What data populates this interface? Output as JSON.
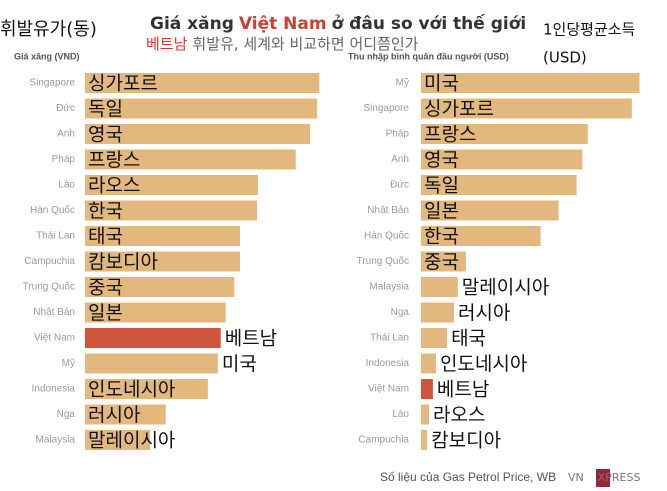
{
  "overlay": {
    "left_title": "휘발유가(동)",
    "right_title": "1인당평균소득",
    "right_unit": "(USD)",
    "subtitle_highlight": "베트남",
    "subtitle_rest": "휘발유, 세계와 비교하면 어디쯤인가"
  },
  "title_parts": [
    "Giá xăng",
    "Việt Nam",
    "ở đâu so với thế giới"
  ],
  "source": "Số liệu của Gas Petrol Price, WB",
  "logo_parts": [
    "VN",
    "E",
    "XPRESS"
  ],
  "chart_data": [
    {
      "type": "bar",
      "orientation": "horizontal",
      "axis_label": "Giá xăng (VND)",
      "categories": [
        "Singapore",
        "Đức",
        "Anh",
        "Pháp",
        "Lào",
        "Hàn Quốc",
        "Thái Lan",
        "Campuchia",
        "Trung Quốc",
        "Nhật Bản",
        "Việt Nam",
        "Mỹ",
        "Indonesia",
        "Nga",
        "Malaysia"
      ],
      "translations": [
        "싱가포르",
        "독일",
        "영국",
        "프랑스",
        "라오스",
        "한국",
        "태국",
        "캄보디아",
        "중국",
        "일본",
        "베트남",
        "미국",
        "인도네시아",
        "러시아",
        "말레이시아"
      ],
      "values": [
        32800,
        32500,
        31500,
        29500,
        24200,
        24100,
        21700,
        21700,
        20900,
        19700,
        19000,
        18600,
        17200,
        11300,
        9100
      ],
      "colors": [
        "#e3b87e",
        "#e3b87e",
        "#e3b87e",
        "#e3b87e",
        "#e3b87e",
        "#e3b87e",
        "#e3b87e",
        "#e3b87e",
        "#e3b87e",
        "#e3b87e",
        "#d0553d",
        "#e3b87e",
        "#e3b87e",
        "#e3b87e",
        "#e3b87e"
      ],
      "xlim": [
        0,
        35000
      ]
    },
    {
      "type": "bar",
      "orientation": "horizontal",
      "axis_label": "Thu nhập bình quân đầu người (USD)",
      "categories": [
        "Mỹ",
        "Singapore",
        "Pháp",
        "Anh",
        "Đức",
        "Nhật Bản",
        "Hàn Quốc",
        "Trung Quốc",
        "Malaysia",
        "Nga",
        "Thái Lan",
        "Indonesia",
        "Việt Nam",
        "Lào",
        "Campuchia"
      ],
      "translations": [
        "미국",
        "싱가포르",
        "프랑스",
        "영국",
        "독일",
        "일본",
        "한국",
        "중국",
        "말레이시아",
        "러시아",
        "태국",
        "인도네시아",
        "베트남",
        "라오스",
        "캄보디아"
      ],
      "values": [
        57000,
        55000,
        43500,
        42100,
        40600,
        35900,
        31200,
        11700,
        9600,
        8600,
        6800,
        3900,
        3100,
        2100,
        1600
      ],
      "colors": [
        "#e3b87e",
        "#e3b87e",
        "#e3b87e",
        "#e3b87e",
        "#e3b87e",
        "#e3b87e",
        "#e3b87e",
        "#e3b87e",
        "#e3b87e",
        "#e3b87e",
        "#e3b87e",
        "#e3b87e",
        "#d0553d",
        "#e3b87e",
        "#e3b87e"
      ],
      "xlim": [
        0,
        60000
      ]
    }
  ]
}
